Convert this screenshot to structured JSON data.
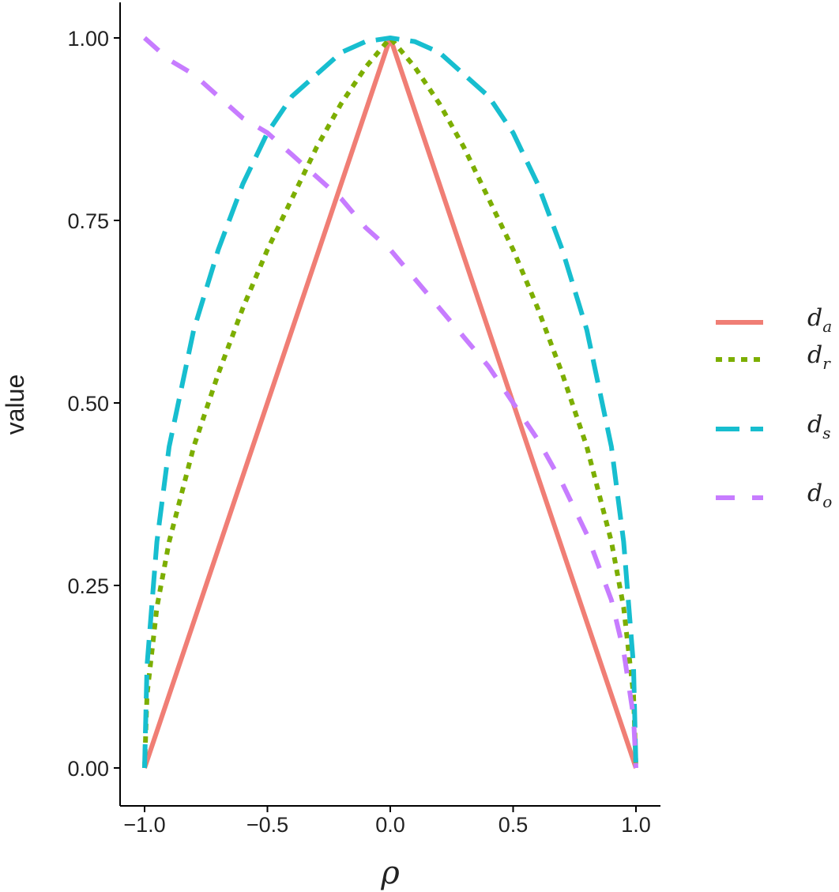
{
  "chart_data": {
    "type": "line",
    "title": "",
    "xlabel": "ρ",
    "ylabel": "value",
    "xlim": [
      -1.05,
      1.05
    ],
    "ylim": [
      -0.05,
      1.05
    ],
    "x_ticks": [
      -1.0,
      -0.5,
      0.0,
      0.5,
      1.0
    ],
    "x_tick_labels": [
      "−1.0",
      "−0.5",
      "0.0",
      "0.5",
      "1.0"
    ],
    "y_ticks": [
      0.0,
      0.25,
      0.5,
      0.75,
      1.0
    ],
    "y_tick_labels": [
      "0.00",
      "0.25",
      "0.50",
      "0.75",
      "1.00"
    ],
    "grid": false,
    "legend_position": "right",
    "series": [
      {
        "name": "d_a",
        "label_main": "d",
        "label_sub": "a",
        "color": "#F07E75",
        "dash": "solid",
        "x": [
          -1.0,
          0.0,
          1.0
        ],
        "y": [
          0.0,
          1.0,
          0.0
        ]
      },
      {
        "name": "d_r",
        "label_main": "d",
        "label_sub": "r",
        "color": "#7CAE00",
        "dash": "dotted",
        "x": [
          -1.0,
          -0.99,
          -0.95,
          -0.9,
          -0.8,
          -0.7,
          -0.6,
          -0.5,
          -0.4,
          -0.3,
          -0.2,
          -0.1,
          0.0,
          0.1,
          0.2,
          0.3,
          0.4,
          0.5,
          0.6,
          0.7,
          0.8,
          0.9,
          0.95,
          0.99,
          1.0
        ],
        "y": [
          0.0,
          0.1,
          0.22,
          0.31,
          0.44,
          0.54,
          0.63,
          0.71,
          0.78,
          0.85,
          0.91,
          0.96,
          1.0,
          0.96,
          0.91,
          0.85,
          0.78,
          0.71,
          0.63,
          0.54,
          0.44,
          0.31,
          0.22,
          0.1,
          0.0
        ]
      },
      {
        "name": "d_s",
        "label_main": "d",
        "label_sub": "s",
        "color": "#17BECF",
        "dash": "longdash",
        "x": [
          -1.0,
          -0.99,
          -0.95,
          -0.9,
          -0.8,
          -0.7,
          -0.6,
          -0.5,
          -0.4,
          -0.3,
          -0.2,
          -0.1,
          0.0,
          0.1,
          0.2,
          0.3,
          0.4,
          0.5,
          0.6,
          0.7,
          0.8,
          0.9,
          0.95,
          0.99,
          1.0
        ],
        "y": [
          0.0,
          0.14,
          0.31,
          0.44,
          0.6,
          0.71,
          0.8,
          0.87,
          0.92,
          0.95,
          0.98,
          0.995,
          1.0,
          0.995,
          0.98,
          0.95,
          0.92,
          0.87,
          0.8,
          0.71,
          0.6,
          0.44,
          0.31,
          0.14,
          0.0
        ]
      },
      {
        "name": "d_o",
        "label_main": "d",
        "label_sub": "o",
        "color": "#C77CFF",
        "dash": "dashed",
        "x": [
          -1.0,
          -0.9,
          -0.8,
          -0.7,
          -0.6,
          -0.5,
          -0.4,
          -0.3,
          -0.2,
          -0.1,
          0.0,
          0.1,
          0.2,
          0.3,
          0.4,
          0.5,
          0.6,
          0.7,
          0.8,
          0.9,
          0.95,
          0.99,
          1.0
        ],
        "y": [
          1.0,
          0.97,
          0.95,
          0.92,
          0.89,
          0.87,
          0.84,
          0.81,
          0.78,
          0.74,
          0.71,
          0.67,
          0.63,
          0.59,
          0.55,
          0.5,
          0.45,
          0.39,
          0.32,
          0.23,
          0.16,
          0.07,
          0.0
        ]
      }
    ]
  }
}
